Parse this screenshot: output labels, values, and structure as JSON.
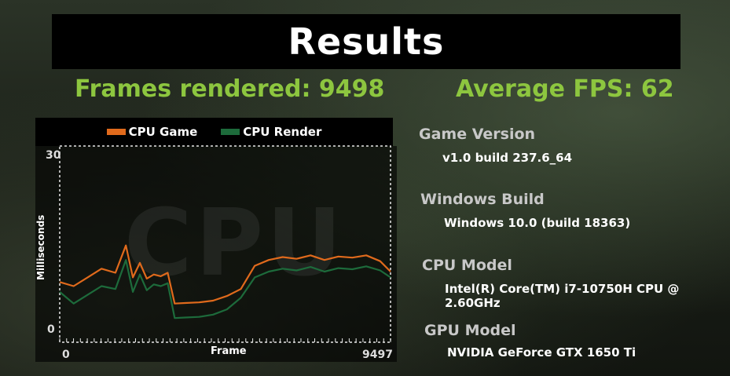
{
  "title": "Results",
  "stats": {
    "frames_rendered": "Frames rendered: 9498",
    "average_fps": "Average FPS: 62"
  },
  "legend": {
    "cpu_game": "CPU Game",
    "cpu_render": "CPU Render"
  },
  "colors": {
    "cpu_game": "#e06a1c",
    "cpu_render": "#1d6b3b",
    "accent": "#8dc63f"
  },
  "chart_data": {
    "type": "line",
    "title": "",
    "xlabel": "Frame",
    "ylabel": "Milliseconds",
    "xlim": [
      0,
      9497
    ],
    "ylim": [
      0,
      30
    ],
    "x_ticks": [
      "0",
      "9497"
    ],
    "y_ticks": [
      "0",
      "30"
    ],
    "watermark": "CPU",
    "x": [
      0,
      400,
      800,
      1200,
      1600,
      1900,
      2100,
      2300,
      2500,
      2700,
      2900,
      3100,
      3300,
      3600,
      4000,
      4400,
      4800,
      5200,
      5600,
      6000,
      6400,
      6800,
      7200,
      7600,
      8000,
      8400,
      8800,
      9200,
      9497
    ],
    "series": [
      {
        "name": "CPU Game",
        "values": [
          8.2,
          7.5,
          9.0,
          10.5,
          9.8,
          14.5,
          9.0,
          11.5,
          8.8,
          9.5,
          9.2,
          9.8,
          4.5,
          4.6,
          4.7,
          5.0,
          5.8,
          7.0,
          11.0,
          12.0,
          12.5,
          12.2,
          12.8,
          12.0,
          12.6,
          12.4,
          12.8,
          11.8,
          10.0
        ]
      },
      {
        "name": "CPU Render",
        "values": [
          6.5,
          4.5,
          6.0,
          7.5,
          7.0,
          12.0,
          6.5,
          9.5,
          6.8,
          7.8,
          7.5,
          8.0,
          2.0,
          2.1,
          2.2,
          2.6,
          3.5,
          5.5,
          9.0,
          10.0,
          10.5,
          10.2,
          10.8,
          10.0,
          10.6,
          10.4,
          10.9,
          10.2,
          9.0
        ]
      }
    ]
  },
  "info": {
    "game_version_label": "Game Version",
    "game_version_value": "v1.0 build 237.6_64",
    "windows_build_label": "Windows Build",
    "windows_build_value": "Windows 10.0 (build 18363)",
    "cpu_model_label": "CPU Model",
    "cpu_model_value": "Intel(R) Core(TM) i7-10750H CPU @ 2.60GHz",
    "gpu_model_label": "GPU Model",
    "gpu_model_value": "NVIDIA GeForce GTX 1650 Ti"
  }
}
